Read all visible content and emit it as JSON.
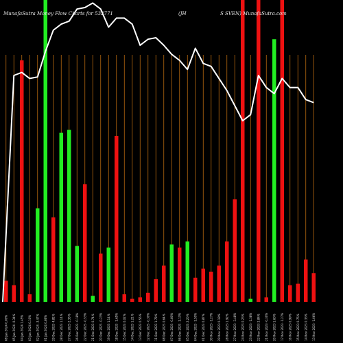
{
  "colors": {
    "background": "#000000",
    "up": "#22ee22",
    "down": "#ee1111",
    "grid": "#b86a10",
    "line": "#ffffff"
  },
  "chart_data": {
    "type": "bar",
    "title_left": "MunafaSutra  Money Flow  Charts for 532771",
    "title_mid": "(JH",
    "title_right": "S SVEN) MunafaSutra.com",
    "ylim": [
      0,
      100
    ],
    "x": [
      "08 Jan 2024 0.00%",
      "05 Jan 2024 -0.34%",
      "04 Jan 2024 1.45%",
      "03 Jan 2024 0.10%",
      "02 Jan 2024 -3.47%",
      "01 Jan 2024 0.86%",
      "29 Dec 2023 4.82%",
      "28 Dec 2023 1.14%",
      "27 Dec 2023 2.33%",
      "26 Dec 2023 -0.18%",
      "22 Dec 2023 -0.53%",
      "21 Dec 2023 0.74%",
      "20 Dec 2023 -0.23%",
      "19 Dec 2023 1.14%",
      "18 Dec 2023 -1.65%",
      "15 Dec 2023 0.02%",
      "14 Dec 2023 1.21%",
      "13 Dec 2023 0.55%",
      "12 Dec 2023 -0.30%",
      "11 Dec 2023 1.78%",
      "08 Dec 2023 0.64%",
      "07 Dec 2023 -0.80%",
      "06 Dec 2023 -1.13%",
      "05 Dec 2023 2.20%",
      "04 Dec 2023 -1.50%",
      "01 Dec 2023 0.87%",
      "30 Nov 2023 -1.27%",
      "29 Nov 2023 0.18%",
      "28 Nov 2023 1.92%",
      "27 Nov 2023 -3.48%",
      "24 Nov 2023 0.23%",
      "23 Nov 2023 -1.38%",
      "22 Nov 2023 2.84%",
      "21 Nov 2023 -0.30%",
      "20 Nov 2023 1.60%",
      "17 Nov 2023 -1.27%",
      "16 Nov 2023 0.99%",
      "15 Nov 2023 0.75%",
      "14 Nov 2023 0.33%",
      "13 Nov 2023 -1.06%"
    ],
    "series": [
      {
        "values": [
          7,
          5.5,
          80,
          2.5,
          31,
          100,
          28,
          56,
          57,
          18.5,
          39,
          2,
          16,
          18,
          55,
          2.5,
          1,
          1.5,
          3,
          7.5,
          12,
          19,
          18,
          20,
          8,
          11,
          10,
          12,
          20,
          34,
          100,
          1,
          100,
          1.5,
          87,
          100,
          5.5,
          6,
          14,
          9.5
        ],
        "colors": [
          "down",
          "down",
          "down",
          "down",
          "up",
          "up",
          "down",
          "up",
          "up",
          "up",
          "down",
          "up",
          "down",
          "up",
          "down",
          "down",
          "down",
          "down",
          "down",
          "down",
          "down",
          "up",
          "down",
          "up",
          "down",
          "down",
          "down",
          "down",
          "down",
          "down",
          "down",
          "up",
          "down",
          "down",
          "up",
          "down",
          "down",
          "down",
          "down",
          "down"
        ]
      },
      {
        "values": [
          0,
          75,
          76,
          74,
          74.5,
          83,
          90,
          92,
          93,
          97,
          97.5,
          99,
          97,
          91,
          94,
          94,
          92,
          85,
          87,
          87.5,
          85,
          82,
          80,
          77,
          84,
          79,
          78,
          74,
          70,
          65,
          60,
          62,
          75,
          71,
          69,
          74,
          71,
          71,
          67,
          66
        ]
      }
    ]
  }
}
